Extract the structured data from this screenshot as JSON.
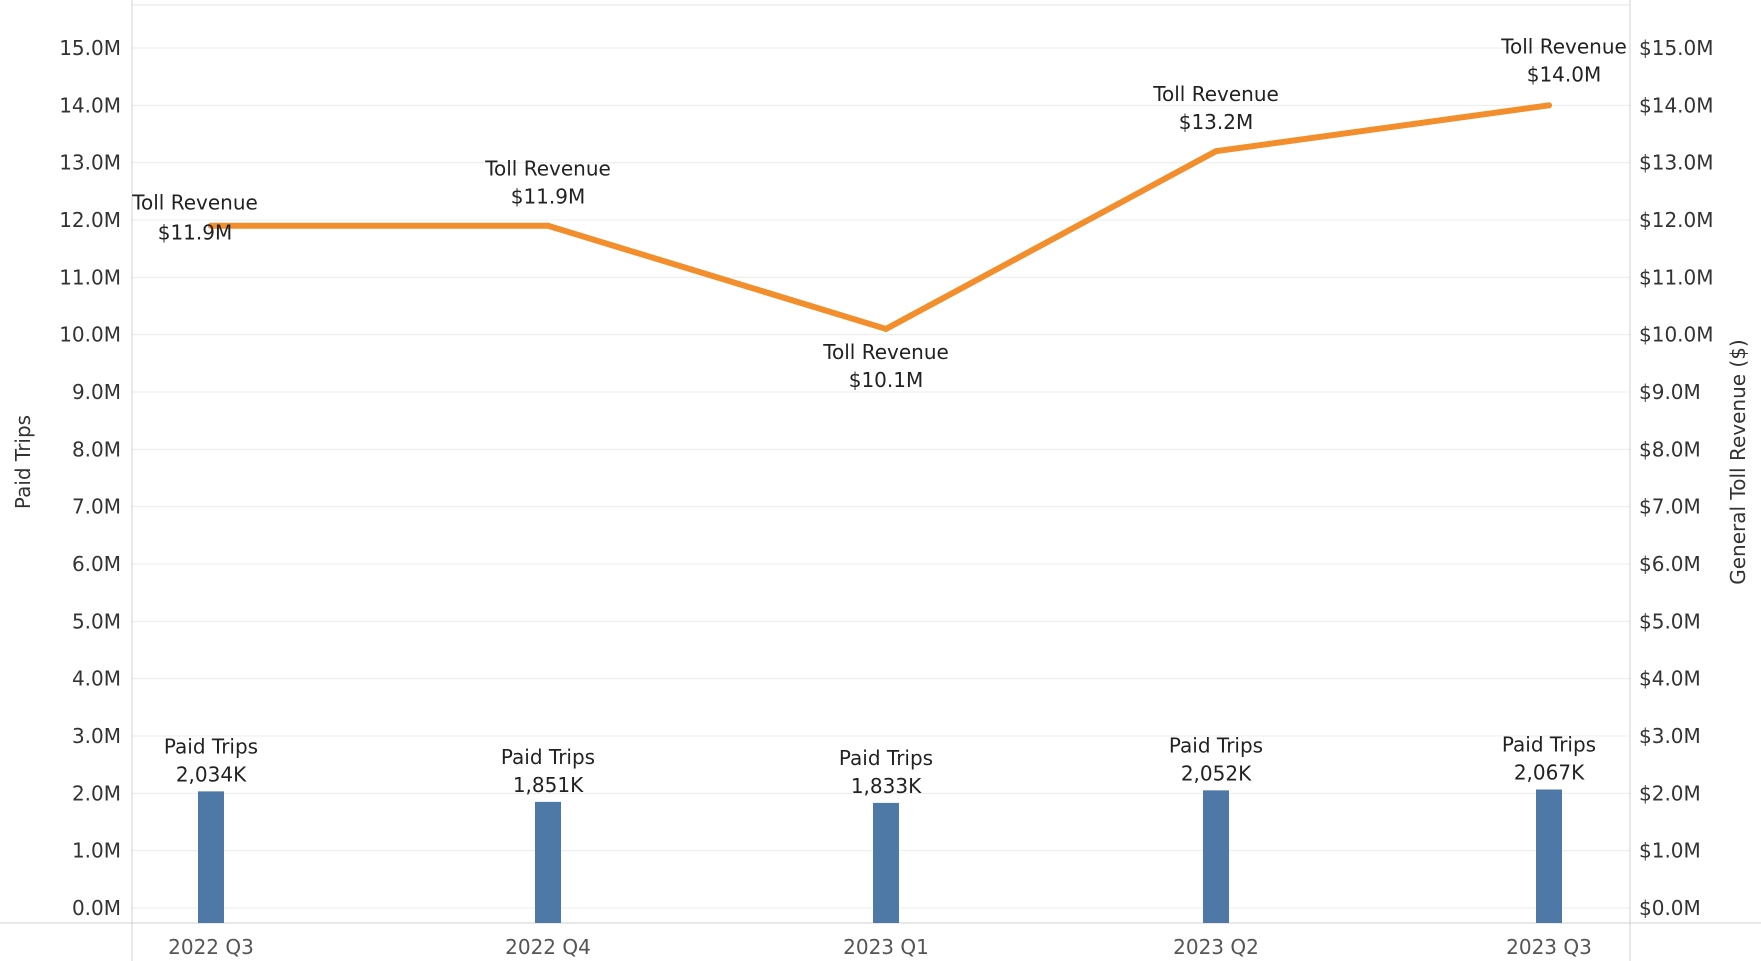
{
  "chart_data": {
    "type": "bar",
    "categories": [
      "2022 Q3",
      "2022 Q4",
      "2023 Q1",
      "2023 Q2",
      "2023 Q3"
    ],
    "series": [
      {
        "name": "Paid Trips",
        "type": "bar",
        "axis": "left",
        "values": [
          2034000,
          1851000,
          1833000,
          2052000,
          2067000
        ],
        "labels": [
          "2,034K",
          "1,851K",
          "1,833K",
          "2,052K",
          "2,067K"
        ],
        "color": "#4e79a7"
      },
      {
        "name": "Toll Revenue",
        "type": "line",
        "axis": "right",
        "values": [
          11900000,
          11900000,
          10100000,
          13200000,
          14000000
        ],
        "labels": [
          "$11.9M",
          "$11.9M",
          "$10.1M",
          "$13.2M",
          "$14.0M"
        ],
        "color": "#f28e2b"
      }
    ],
    "ylabel": "Paid Trips",
    "y2label": "General Toll Revenue ($)",
    "ylim": [
      0,
      15000000
    ],
    "y2lim": [
      0,
      15000000
    ],
    "yticks": [
      "0.0M",
      "1.0M",
      "2.0M",
      "3.0M",
      "4.0M",
      "5.0M",
      "6.0M",
      "7.0M",
      "8.0M",
      "9.0M",
      "10.0M",
      "11.0M",
      "12.0M",
      "13.0M",
      "14.0M",
      "15.0M"
    ],
    "y2ticks": [
      "$0.0M",
      "$1.0M",
      "$2.0M",
      "$3.0M",
      "$4.0M",
      "$5.0M",
      "$6.0M",
      "$7.0M",
      "$8.0M",
      "$9.0M",
      "$10.0M",
      "$11.0M",
      "$12.0M",
      "$13.0M",
      "$14.0M",
      "$15.0M"
    ],
    "grid": true
  }
}
